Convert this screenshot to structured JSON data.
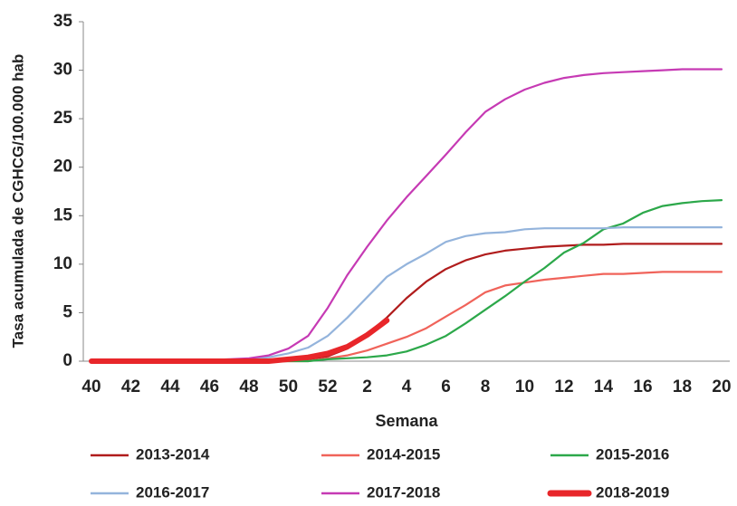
{
  "chart_data": {
    "type": "line",
    "ylabel": "Tasa acumulada  de CGHCG/100.000 hab",
    "xlabel": "Semana",
    "categories": [
      "40",
      null,
      "42",
      null,
      "44",
      null,
      "46",
      null,
      "48",
      null,
      "50",
      null,
      "52",
      null,
      "2",
      null,
      "4",
      null,
      "6",
      null,
      "8",
      null,
      "10",
      null,
      "12",
      null,
      "14",
      null,
      "16",
      null,
      "18",
      null,
      "20"
    ],
    "ylim": [
      0,
      35
    ],
    "yticks": [
      0,
      5,
      10,
      15,
      20,
      25,
      30,
      35
    ],
    "grid": false,
    "legend": "bottom",
    "series": [
      {
        "name": "2013-2014",
        "color": "#b01c1c",
        "values": [
          0,
          0,
          0,
          0,
          0,
          0,
          0,
          0,
          0,
          0,
          0.1,
          0.2,
          0.5,
          1.3,
          2.8,
          4.5,
          6.5,
          8.2,
          9.5,
          10.4,
          11.0,
          11.4,
          11.6,
          11.8,
          11.9,
          12.0,
          12.0,
          12.1,
          12.1,
          12.1,
          12.1,
          12.1,
          12.1
        ]
      },
      {
        "name": "2014-2015",
        "color": "#f0635a",
        "values": [
          0,
          0,
          0,
          0,
          0,
          0,
          0,
          0,
          0,
          0,
          0,
          0,
          0.3,
          0.6,
          1.1,
          1.8,
          2.5,
          3.4,
          4.6,
          5.8,
          7.1,
          7.8,
          8.1,
          8.4,
          8.6,
          8.8,
          9.0,
          9.0,
          9.1,
          9.2,
          9.2,
          9.2,
          9.2
        ]
      },
      {
        "name": "2015-2016",
        "color": "#2ca84a",
        "values": [
          0,
          0,
          0,
          0,
          0,
          0,
          0,
          0,
          0,
          0,
          0,
          0,
          0.2,
          0.3,
          0.4,
          0.6,
          1.0,
          1.7,
          2.6,
          3.9,
          5.3,
          6.7,
          8.2,
          9.6,
          11.2,
          12.2,
          13.6,
          14.2,
          15.3,
          16.0,
          16.3,
          16.5,
          16.6
        ]
      },
      {
        "name": "2016-2017",
        "color": "#94b4dc",
        "values": [
          0,
          0,
          0,
          0,
          0,
          0,
          0,
          0.1,
          0.2,
          0.4,
          0.8,
          1.4,
          2.6,
          4.5,
          6.6,
          8.7,
          10.0,
          11.1,
          12.3,
          12.9,
          13.2,
          13.3,
          13.6,
          13.7,
          13.7,
          13.7,
          13.7,
          13.8,
          13.8,
          13.8,
          13.8,
          13.8,
          13.8
        ]
      },
      {
        "name": "2017-2018",
        "color": "#c63ab4",
        "values": [
          0.1,
          0.1,
          0.1,
          0.1,
          0.1,
          0.1,
          0.1,
          0.2,
          0.3,
          0.6,
          1.3,
          2.6,
          5.5,
          8.9,
          11.8,
          14.5,
          16.9,
          19.1,
          21.3,
          23.6,
          25.7,
          27.0,
          28.0,
          28.7,
          29.2,
          29.5,
          29.7,
          29.8,
          29.9,
          30.0,
          30.1,
          30.1,
          30.1
        ]
      },
      {
        "name": "2018-2019",
        "color": "#e8262a",
        "bold": true,
        "values": [
          0,
          0,
          0,
          0,
          0,
          0,
          0,
          0,
          0,
          0,
          0.2,
          0.4,
          0.8,
          1.5,
          2.7,
          4.2,
          null,
          null,
          null,
          null,
          null,
          null,
          null,
          null,
          null,
          null,
          null,
          null,
          null,
          null,
          null,
          null,
          null
        ]
      }
    ]
  }
}
